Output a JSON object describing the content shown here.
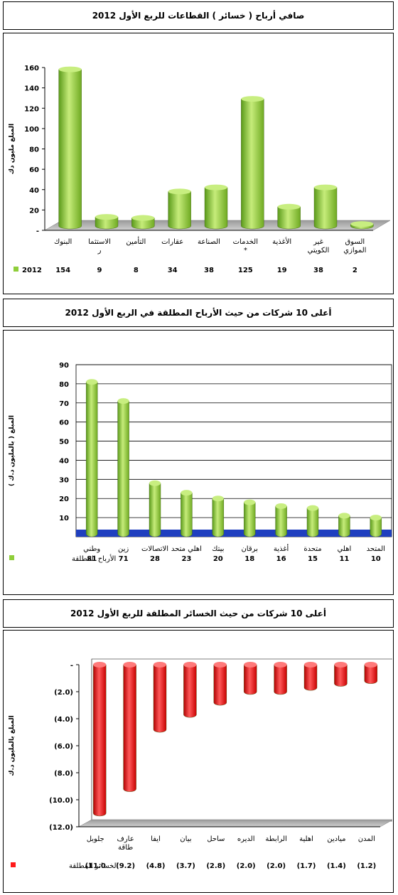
{
  "chart_data": [
    {
      "type": "bar",
      "title": "صافي أرباح ( خسائر ) القطاعات للربع الأول 2012",
      "ylabel": "المبلغ مليون دك",
      "ylim": [
        0,
        160
      ],
      "yticks": [
        0,
        20,
        40,
        60,
        80,
        100,
        120,
        140,
        160
      ],
      "ytick_labels": [
        "-",
        "20",
        "40",
        "60",
        "80",
        "100",
        "120",
        "140",
        "160"
      ],
      "categories": [
        "البنوك",
        "الاستثمار",
        "التأمين",
        "عقارات",
        "الصناعة",
        "الخدمات *",
        "الأغذية",
        "غير الكويتي",
        "السوق الموازي"
      ],
      "category_lines": [
        [
          "البنوك"
        ],
        [
          "الاستثما",
          "ر"
        ],
        [
          "التأمين"
        ],
        [
          "عقارات"
        ],
        [
          "الصناعة"
        ],
        [
          "الخدمات",
          "*"
        ],
        [
          "الأغذية"
        ],
        [
          "غير",
          "الكويتي"
        ],
        [
          "السوق",
          "الموازي"
        ]
      ],
      "series": [
        {
          "name": "2012",
          "values": [
            154,
            9,
            8,
            34,
            38,
            125,
            19,
            38,
            2
          ],
          "color": "#8fce3a"
        }
      ],
      "grid": false,
      "legend": "bottom-left"
    },
    {
      "type": "bar",
      "title": "أعلى 10 شركات من حيث الأرباح المطلقة في الربع الأول 2012",
      "ylabel": "المبلغ ( بالمليون د.ك )",
      "ylim": [
        0,
        90
      ],
      "yticks": [
        0,
        10,
        20,
        30,
        40,
        50,
        60,
        70,
        80,
        90
      ],
      "ytick_labels": [
        "",
        "10",
        "20",
        "30",
        "40",
        "50",
        "60",
        "70",
        "80",
        "90"
      ],
      "categories": [
        "وطني",
        "زين",
        "الاتصالات",
        "اهلي متحد",
        "بيتك",
        "برقان",
        "أغذية",
        "متحدة",
        "اهلي",
        "المتحد"
      ],
      "category_lines": [
        [
          "وطني"
        ],
        [
          "زين"
        ],
        [
          "الاتصالات"
        ],
        [
          "اهلي متحد"
        ],
        [
          "بيتك"
        ],
        [
          "برقان"
        ],
        [
          "أغذية"
        ],
        [
          "متحدة"
        ],
        [
          "اهلي"
        ],
        [
          "المتحد"
        ]
      ],
      "series": [
        {
          "name": "الأرباح المطلقة",
          "values": [
            81,
            71,
            28,
            23,
            20,
            18,
            16,
            15,
            11,
            10
          ],
          "color": "#8fce3a"
        }
      ],
      "grid": true,
      "legend": "bottom-left"
    },
    {
      "type": "bar",
      "title": "أعلى 10 شركات من حيث الخسائر المطلقة للربع الأول 2012",
      "ylabel": "المبلغ بالمليون د.ك",
      "ylim": [
        -12,
        0
      ],
      "yticks": [
        0,
        -2,
        -4,
        -6,
        -8,
        -10,
        -12
      ],
      "ytick_labels": [
        "-",
        "(2.0)",
        "(4.0)",
        "(6.0)",
        "(8.0)",
        "(10.0)",
        "(12.0)"
      ],
      "categories": [
        "جلوبل",
        "عارف طاقة",
        "ايفا",
        "بيان",
        "ساحل",
        "الديره",
        "الرابطة",
        "اهلية",
        "ميادين",
        "المدن"
      ],
      "category_lines": [
        [
          "جلوبل"
        ],
        [
          "عارف",
          "طاقة"
        ],
        [
          "ايفا"
        ],
        [
          "بيان"
        ],
        [
          "ساحل"
        ],
        [
          "الديره"
        ],
        [
          "الرابطة"
        ],
        [
          "اهلية"
        ],
        [
          "ميادين"
        ],
        [
          "المدن"
        ]
      ],
      "value_labels": [
        "(11.0",
        "(9.2)",
        "(4.8)",
        "(3.7)",
        "(2.8)",
        "(2.0)",
        "(2.0)",
        "(1.7)",
        "(1.4)",
        "(1.2)"
      ],
      "series": [
        {
          "name": "الخسائر المطلقة",
          "values": [
            -11.0,
            -9.2,
            -4.8,
            -3.7,
            -2.8,
            -2.0,
            -2.0,
            -1.7,
            -1.4,
            -1.2
          ],
          "color": "#ff1a1a"
        }
      ],
      "grid": false,
      "legend": "bottom-left"
    }
  ]
}
